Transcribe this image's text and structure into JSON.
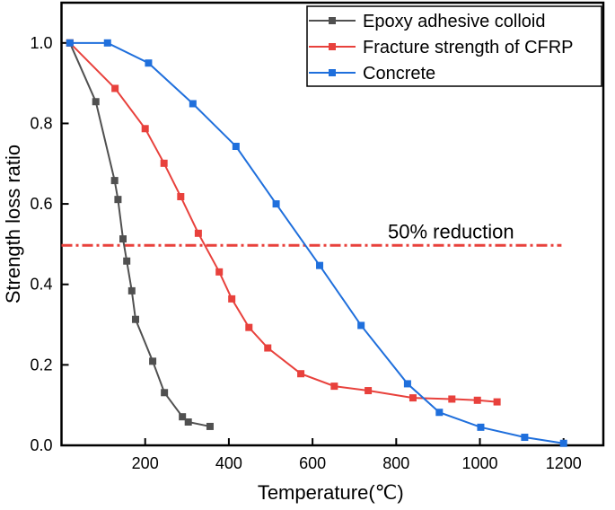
{
  "chart_data": {
    "type": "line",
    "title": "",
    "xlabel": "Temperature(℃)",
    "ylabel": "Strength loss ratio",
    "xlim": [
      0,
      1295
    ],
    "ylim": [
      0,
      1.1
    ],
    "xticks": [
      200,
      400,
      600,
      800,
      1000,
      1200
    ],
    "yticks": [
      0.0,
      0.2,
      0.4,
      0.6,
      0.8,
      1.0
    ],
    "ytick_labels": [
      "0.0",
      "0.2",
      "0.4",
      "0.6",
      "0.8",
      "1.0"
    ],
    "grid": false,
    "legend_position": "top-right",
    "series": [
      {
        "name": "Epoxy adhesive colloid",
        "color": "#505050",
        "x": [
          20,
          82,
          127,
          135,
          147,
          156,
          168,
          177,
          218,
          246,
          289,
          303,
          355
        ],
        "y": [
          1.0,
          0.854,
          0.658,
          0.611,
          0.513,
          0.458,
          0.384,
          0.313,
          0.209,
          0.131,
          0.071,
          0.058,
          0.047
        ]
      },
      {
        "name": "Fracture strength of CFRP",
        "color": "#e8413c",
        "x": [
          20,
          128,
          200,
          245,
          285,
          327,
          377,
          407,
          448,
          493,
          572,
          652,
          733,
          840,
          933,
          994,
          1041
        ],
        "y": [
          1.0,
          0.887,
          0.787,
          0.701,
          0.618,
          0.527,
          0.431,
          0.364,
          0.293,
          0.242,
          0.178,
          0.147,
          0.136,
          0.118,
          0.115,
          0.112,
          0.108
        ]
      },
      {
        "name": "Concrete",
        "color": "#1f6fdc",
        "x": [
          20,
          110,
          208,
          314,
          417,
          513,
          617,
          716,
          827,
          903,
          1002,
          1107,
          1200
        ],
        "y": [
          1.0,
          1.0,
          0.95,
          0.849,
          0.743,
          0.6,
          0.447,
          0.298,
          0.153,
          0.082,
          0.045,
          0.02,
          0.005
        ]
      }
    ],
    "annotations": [
      {
        "text": "50% reduction",
        "y": 0.497,
        "x_range": [
          0,
          1195
        ],
        "color": "#e8413c",
        "style": "dash-dot"
      }
    ]
  }
}
